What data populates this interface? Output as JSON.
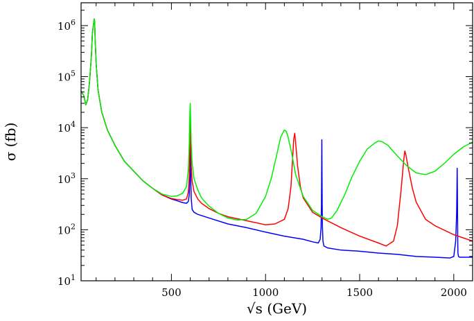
{
  "chart_data": {
    "type": "line",
    "title": "",
    "xlabel": "√s (GeV)",
    "ylabel": "σ (fb)",
    "xlim": [
      20,
      2100
    ],
    "ylim": [
      10,
      2800000
    ],
    "y_scale": "log",
    "grid": false,
    "legend": "none",
    "x_ticks": [
      500,
      1000,
      1500,
      2000
    ],
    "y_ticks": [
      {
        "value": 10,
        "base": "10",
        "exp": "1"
      },
      {
        "value": 100,
        "base": "10",
        "exp": "2"
      },
      {
        "value": 1000,
        "base": "10",
        "exp": "3"
      },
      {
        "value": 10000,
        "base": "10",
        "exp": "4"
      },
      {
        "value": 100000,
        "base": "10",
        "exp": "5"
      },
      {
        "value": 1000000,
        "base": "10",
        "exp": "6"
      }
    ],
    "series": [
      {
        "color": "#0000ff",
        "x": [
          20,
          35,
          45,
          55,
          65,
          75,
          80,
          85,
          88,
          90,
          91,
          92,
          93,
          95,
          100,
          110,
          130,
          160,
          200,
          250,
          300,
          350,
          400,
          450,
          500,
          530,
          560,
          580,
          590,
          595,
          597,
          598,
          599,
          600,
          601,
          602,
          605,
          610,
          620,
          640,
          700,
          800,
          900,
          1000,
          1100,
          1200,
          1250,
          1280,
          1290,
          1295,
          1297,
          1298,
          1299,
          1300,
          1301,
          1302,
          1305,
          1310,
          1330,
          1400,
          1500,
          1600,
          1700,
          1800,
          1900,
          1980,
          2000,
          2010,
          2015,
          2017,
          2018,
          2019,
          2020,
          2021,
          2022,
          2025,
          2030,
          2060,
          2100
        ],
        "y": [
          52000,
          42000,
          28000,
          35000,
          80000,
          260000,
          700000,
          1000000,
          1200000,
          1350000,
          1300000,
          1150000,
          900000,
          520000,
          180000,
          55000,
          20000,
          9000,
          4500,
          2200,
          1400,
          900,
          650,
          480,
          400,
          370,
          340,
          330,
          360,
          500,
          800,
          1400,
          4500,
          17000,
          4500,
          1500,
          420,
          250,
          220,
          200,
          170,
          130,
          110,
          90,
          75,
          65,
          58,
          55,
          65,
          110,
          300,
          1200,
          5800,
          1200,
          300,
          120,
          60,
          48,
          44,
          40,
          38,
          35,
          33,
          30,
          29,
          28,
          30,
          60,
          200,
          700,
          1600,
          700,
          200,
          60,
          35,
          30,
          29,
          29,
          29
        ]
      },
      {
        "color": "#ff0000",
        "x": [
          20,
          35,
          45,
          55,
          65,
          75,
          80,
          85,
          88,
          90,
          91,
          92,
          93,
          95,
          100,
          110,
          130,
          160,
          200,
          250,
          300,
          350,
          400,
          450,
          500,
          530,
          560,
          580,
          590,
          595,
          598,
          600,
          602,
          605,
          610,
          620,
          640,
          660,
          700,
          750,
          800,
          900,
          1000,
          1050,
          1100,
          1120,
          1135,
          1145,
          1150,
          1155,
          1160,
          1170,
          1185,
          1200,
          1250,
          1300,
          1400,
          1500,
          1600,
          1640,
          1680,
          1700,
          1720,
          1735,
          1740,
          1745,
          1760,
          1780,
          1800,
          1850,
          1900,
          2000,
          2100
        ],
        "y": [
          52000,
          42000,
          28000,
          35000,
          80000,
          260000,
          700000,
          1000000,
          1200000,
          1350000,
          1300000,
          1150000,
          900000,
          520000,
          180000,
          55000,
          20000,
          9000,
          4500,
          2200,
          1400,
          900,
          650,
          480,
          410,
          390,
          380,
          400,
          550,
          1200,
          6500,
          20000,
          6000,
          1800,
          900,
          560,
          400,
          330,
          260,
          210,
          180,
          150,
          125,
          130,
          160,
          260,
          700,
          3000,
          6000,
          7800,
          5000,
          1800,
          700,
          420,
          220,
          170,
          110,
          75,
          55,
          48,
          60,
          120,
          600,
          2500,
          3500,
          3000,
          1500,
          650,
          350,
          160,
          120,
          80,
          60
        ]
      },
      {
        "color": "#00ee00",
        "x": [
          20,
          35,
          45,
          55,
          65,
          75,
          80,
          85,
          88,
          90,
          91,
          92,
          93,
          95,
          100,
          110,
          130,
          160,
          200,
          250,
          300,
          350,
          400,
          450,
          500,
          530,
          560,
          580,
          590,
          595,
          598,
          600,
          602,
          605,
          610,
          620,
          640,
          660,
          700,
          750,
          800,
          850,
          900,
          950,
          1000,
          1030,
          1060,
          1080,
          1100,
          1110,
          1120,
          1140,
          1160,
          1200,
          1250,
          1300,
          1330,
          1350,
          1380,
          1420,
          1460,
          1500,
          1540,
          1580,
          1600,
          1620,
          1650,
          1700,
          1750,
          1800,
          1850,
          1900,
          1950,
          2000,
          2050,
          2100
        ],
        "y": [
          52000,
          42000,
          28000,
          35000,
          80000,
          260000,
          700000,
          1000000,
          1200000,
          1350000,
          1300000,
          1150000,
          900000,
          520000,
          180000,
          55000,
          20000,
          9000,
          4500,
          2200,
          1400,
          900,
          650,
          500,
          450,
          460,
          520,
          700,
          1500,
          5000,
          20000,
          30000,
          15000,
          5000,
          2000,
          1000,
          600,
          420,
          290,
          210,
          170,
          155,
          160,
          210,
          450,
          1000,
          3000,
          6500,
          9000,
          8500,
          6500,
          3000,
          1200,
          450,
          240,
          180,
          160,
          170,
          240,
          480,
          1100,
          2200,
          3800,
          5000,
          5500,
          5300,
          4500,
          2800,
          1800,
          1300,
          1200,
          1400,
          2000,
          3000,
          4200,
          5200
        ]
      }
    ]
  }
}
